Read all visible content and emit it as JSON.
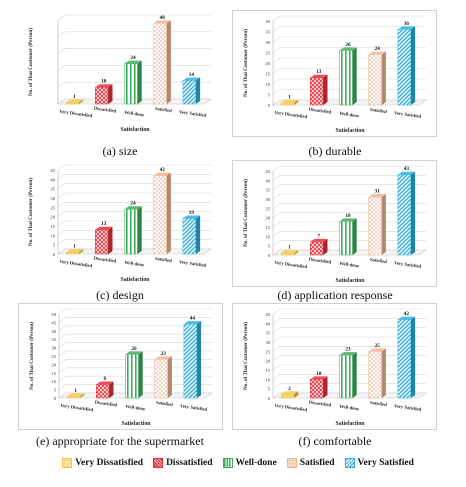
{
  "legend": [
    {
      "label": "Very Dissatisfied",
      "color": "#f2c84b",
      "pattern": "dots"
    },
    {
      "label": "Dissatisfied",
      "color": "#e8303a",
      "pattern": "cross"
    },
    {
      "label": "Well-done",
      "color": "#3fae5a",
      "pattern": "vlines"
    },
    {
      "label": "Satisfied",
      "color": "#f1b494",
      "pattern": "dots"
    },
    {
      "label": "Very Satisfied",
      "color": "#2fb0e0",
      "pattern": "dlines"
    }
  ],
  "chart_data": [
    {
      "type": "bar",
      "caption": "(a) size",
      "ylabel": "No. of Thai Customer (Person)",
      "xlabel": "Satisfaction",
      "categories": [
        "Very Dissatisfied",
        "Dissatisfied",
        "Well-done",
        "Satisfied",
        "Very Satisfied"
      ],
      "values": [
        1,
        10,
        24,
        48,
        14
      ],
      "ylim": [
        0,
        50
      ],
      "yticks": [],
      "grid": true
    },
    {
      "type": "bar",
      "caption": "(b) durable",
      "ylabel": "No. of Thai Customer (Person)",
      "xlabel": "Satisfaction",
      "categories": [
        "Very Dissatisfied",
        "Dissatisfied",
        "Well-done",
        "Satisfied",
        "Very Satisfied"
      ],
      "values": [
        1,
        13,
        26,
        24,
        36
      ],
      "ylim": [
        0,
        40
      ],
      "yticks": [
        0,
        5,
        10,
        15,
        20,
        25,
        30,
        35,
        40
      ],
      "grid": true
    },
    {
      "type": "bar",
      "caption": "(c) design",
      "ylabel": "No. of Thai Customer (Person)",
      "xlabel": "Satisfaction",
      "categories": [
        "Very Dissatisfied",
        "Dissatisfied",
        "Well-done",
        "Satisfied",
        "Very Satisfied"
      ],
      "values": [
        1,
        13,
        24,
        42,
        19
      ],
      "ylim": [
        0,
        45
      ],
      "yticks": [
        0,
        5,
        10,
        15,
        20,
        25,
        30,
        35,
        40,
        45
      ],
      "grid": true
    },
    {
      "type": "bar",
      "caption": "(d) application response",
      "ylabel": "No. of Thai Customer (Person)",
      "xlabel": "Satisfaction",
      "categories": [
        "Very Dissatisfied",
        "Dissatisfied",
        "Well-done",
        "Satisfied",
        "Very Satisfied"
      ],
      "values": [
        1,
        7,
        18,
        31,
        43
      ],
      "ylim": [
        0,
        45
      ],
      "yticks": [
        0,
        5,
        10,
        15,
        20,
        25,
        30,
        35,
        40,
        45
      ],
      "grid": true
    },
    {
      "type": "bar",
      "caption": "(e) appropriate for the supermarket",
      "ylabel": "No. of Thai Customer (Person)",
      "xlabel": "Satisfaction",
      "categories": [
        "Very Dissatisfied",
        "Dissatisfied",
        "Well-done",
        "Satisfied",
        "Very Satisfied"
      ],
      "values": [
        1,
        8,
        26,
        23,
        44
      ],
      "ylim": [
        0,
        50
      ],
      "yticks": [
        0,
        5,
        10,
        15,
        20,
        25,
        30,
        35,
        40,
        45,
        50
      ],
      "grid": true
    },
    {
      "type": "bar",
      "caption": "(f) comfortable",
      "ylabel": "No. of Thai Customer (Person)",
      "xlabel": "Satisfaction",
      "categories": [
        "Very Dissatisfied",
        "Dissatisfied",
        "Well-done",
        "Satisfied",
        "Very Satisfied"
      ],
      "values": [
        2,
        10,
        23,
        25,
        42
      ],
      "ylim": [
        0,
        45
      ],
      "yticks": [
        0,
        5,
        10,
        15,
        20,
        25,
        30,
        35,
        40,
        45
      ],
      "grid": true
    }
  ]
}
